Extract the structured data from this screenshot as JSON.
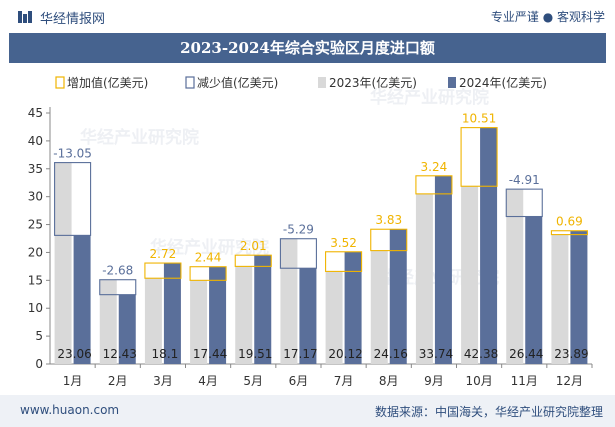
{
  "header": {
    "site_name": "华经情报网",
    "slogan": "专业严谨 ● 客观科学"
  },
  "watermark": "华经产业研究院",
  "footer": {
    "url": "www.huaon.com",
    "source": "数据来源：中国海关，华经产业研究院整理"
  },
  "colors": {
    "brand": "#46638f",
    "bar_2023": "#d9d9d9",
    "bar_2024": "#5a6f9a",
    "increase": "#f0b400",
    "decrease": "#5a6f9a"
  },
  "chart_data": {
    "type": "bar",
    "title": "2023-2024年综合实验区月度进口额",
    "categories": [
      "1月",
      "2月",
      "3月",
      "4月",
      "5月",
      "6月",
      "7月",
      "8月",
      "9月",
      "10月",
      "11月",
      "12月"
    ],
    "series": [
      {
        "name": "2023年(亿美元)",
        "values": [
          36.11,
          15.11,
          15.38,
          15.0,
          17.5,
          22.46,
          16.6,
          20.33,
          30.5,
          31.87,
          31.35,
          23.2
        ]
      },
      {
        "name": "2024年(亿美元)",
        "values": [
          23.06,
          12.43,
          18.1,
          17.44,
          19.51,
          17.17,
          20.12,
          24.16,
          33.74,
          42.38,
          26.44,
          23.89
        ]
      }
    ],
    "changes": [
      -13.05,
      -2.68,
      2.72,
      2.44,
      2.01,
      -5.29,
      3.52,
      3.83,
      3.24,
      10.51,
      -4.91,
      0.69
    ],
    "change_labels": [
      "-13.05",
      "-2.68",
      "2.72",
      "2.44",
      "2.01",
      "-5.29",
      "3.52",
      "3.83",
      "3.24",
      "10.51",
      "-4.91",
      "0.69"
    ],
    "value_labels": [
      "23.06",
      "12.43",
      "18.1",
      "17.44",
      "19.51",
      "17.17",
      "20.12",
      "24.16",
      "33.74",
      "42.38",
      "26.44",
      "23.89"
    ],
    "legend": [
      "增加值(亿美元)",
      "减少值(亿美元)",
      "2023年(亿美元)",
      "2024年(亿美元)"
    ],
    "legend_position": "top",
    "ylim": [
      0,
      45
    ],
    "yticks": [
      0,
      5,
      10,
      15,
      20,
      25,
      30,
      35,
      40,
      45
    ],
    "grid": false
  }
}
